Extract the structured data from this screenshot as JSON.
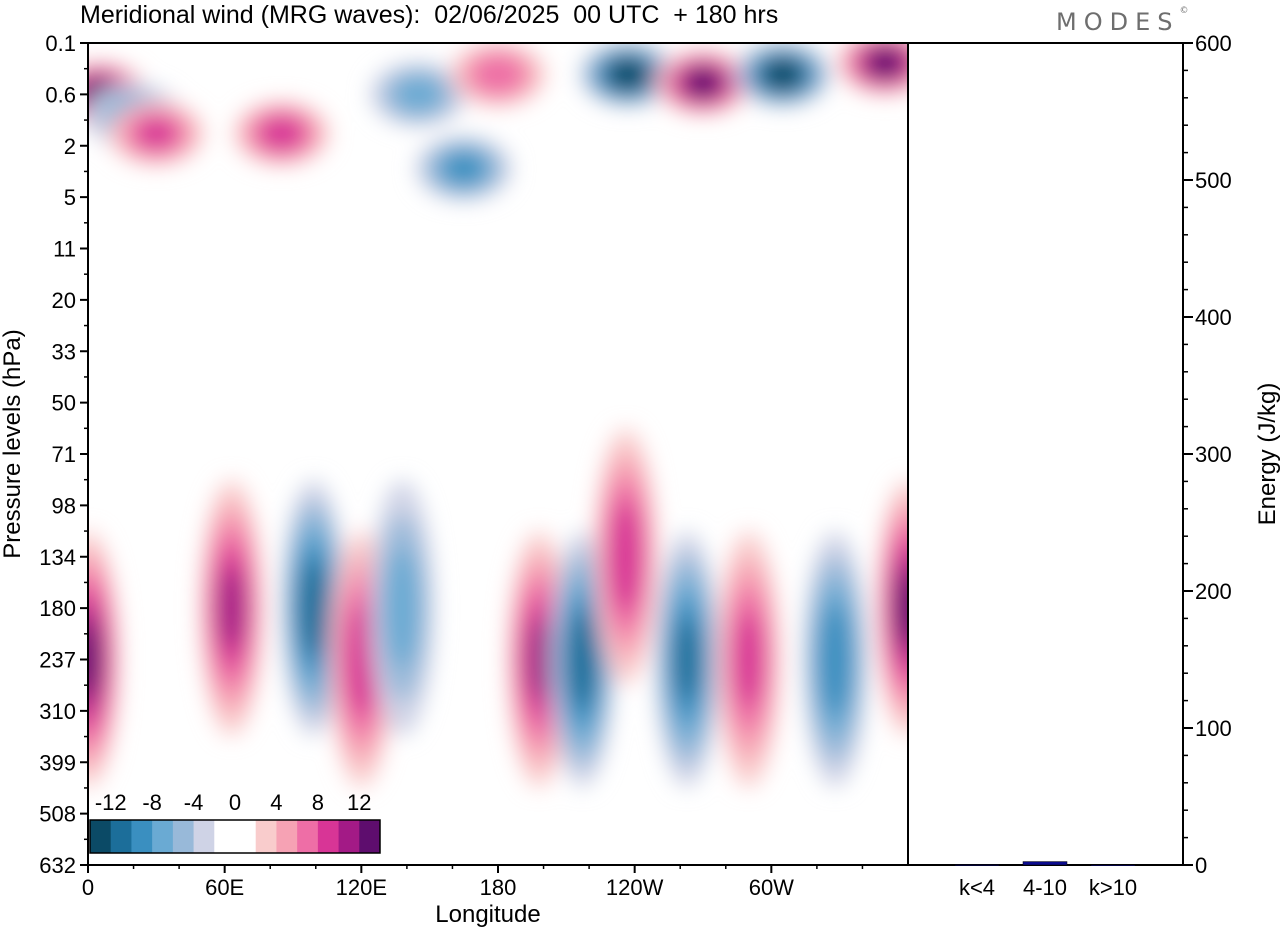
{
  "header": {
    "title": "Meridional wind (MRG waves):  02/06/2025  00 UTC  + 180 hrs",
    "logo": "MODES",
    "logo_mark": "©"
  },
  "colors": {
    "scale": [
      "#0b4a66",
      "#1c6e9a",
      "#3a8fc0",
      "#6aaad3",
      "#98b9d9",
      "#cfd3e6",
      "#ffffff",
      "#ffffff",
      "#f9cccc",
      "#f6a2b4",
      "#ee6ea6",
      "#d83596",
      "#a31a86",
      "#5e0d6e"
    ],
    "frame": "#000000",
    "bar": "#0a0a8c"
  },
  "chart_data": [
    {
      "type": "heatmap",
      "title": "Meridional wind (MRG waves):  02/06/2025  00 UTC  + 180 hrs",
      "xlabel": "Longitude",
      "ylabel": "Pressure levels (hPa)",
      "x_ticks": [
        "0",
        "60E",
        "120E",
        "180",
        "120W",
        "60W"
      ],
      "y_ticks": [
        "0.1",
        "0.6",
        "2",
        "5",
        "11",
        "20",
        "33",
        "50",
        "71",
        "98",
        "134",
        "180",
        "237",
        "310",
        "399",
        "508",
        "632"
      ],
      "colorbar_ticks": [
        "-12",
        "-8",
        "-4",
        "0",
        "4",
        "8",
        "12"
      ],
      "colorbar_range": [
        -14,
        14
      ],
      "features": [
        {
          "lon": 5,
          "level": "0.6",
          "value": 14
        },
        {
          "lon": 20,
          "level": "1",
          "value": -6
        },
        {
          "lon": 30,
          "level": "1.5",
          "value": 8
        },
        {
          "lon": 85,
          "level": "1.5",
          "value": 9
        },
        {
          "lon": 145,
          "level": "0.6",
          "value": -6
        },
        {
          "lon": 165,
          "level": "3",
          "value": -8
        },
        {
          "lon": 180,
          "level": "0.3",
          "value": 7
        },
        {
          "lon": 237,
          "level": "0.3",
          "value": -14
        },
        {
          "lon": 270,
          "level": "0.4",
          "value": 13
        },
        {
          "lon": 305,
          "level": "0.3",
          "value": -14
        },
        {
          "lon": 350,
          "level": "0.2",
          "value": 13
        },
        {
          "lon": 0,
          "level": "237",
          "value": 12
        },
        {
          "lon": 63,
          "level": "180",
          "value": 10
        },
        {
          "lon": 99,
          "level": "180",
          "value": -11
        },
        {
          "lon": 120,
          "level": "237",
          "value": 9
        },
        {
          "lon": 138,
          "level": "180",
          "value": -6
        },
        {
          "lon": 198,
          "level": "237",
          "value": 10
        },
        {
          "lon": 217,
          "level": "237",
          "value": -11
        },
        {
          "lon": 236,
          "level": "134",
          "value": 9
        },
        {
          "lon": 263,
          "level": "237",
          "value": -10
        },
        {
          "lon": 290,
          "level": "237",
          "value": 8
        },
        {
          "lon": 328,
          "level": "237",
          "value": -9
        },
        {
          "lon": 360,
          "level": "180",
          "value": 12
        }
      ]
    },
    {
      "type": "bar",
      "categories": [
        "k<4",
        "4-10",
        "k>10"
      ],
      "values": [
        0.3,
        2.5,
        0.2
      ],
      "ylabel": "Energy (J/kg)",
      "ylim": [
        0,
        600
      ],
      "y_ticks": [
        "0",
        "100",
        "200",
        "300",
        "400",
        "500",
        "600"
      ]
    }
  ]
}
